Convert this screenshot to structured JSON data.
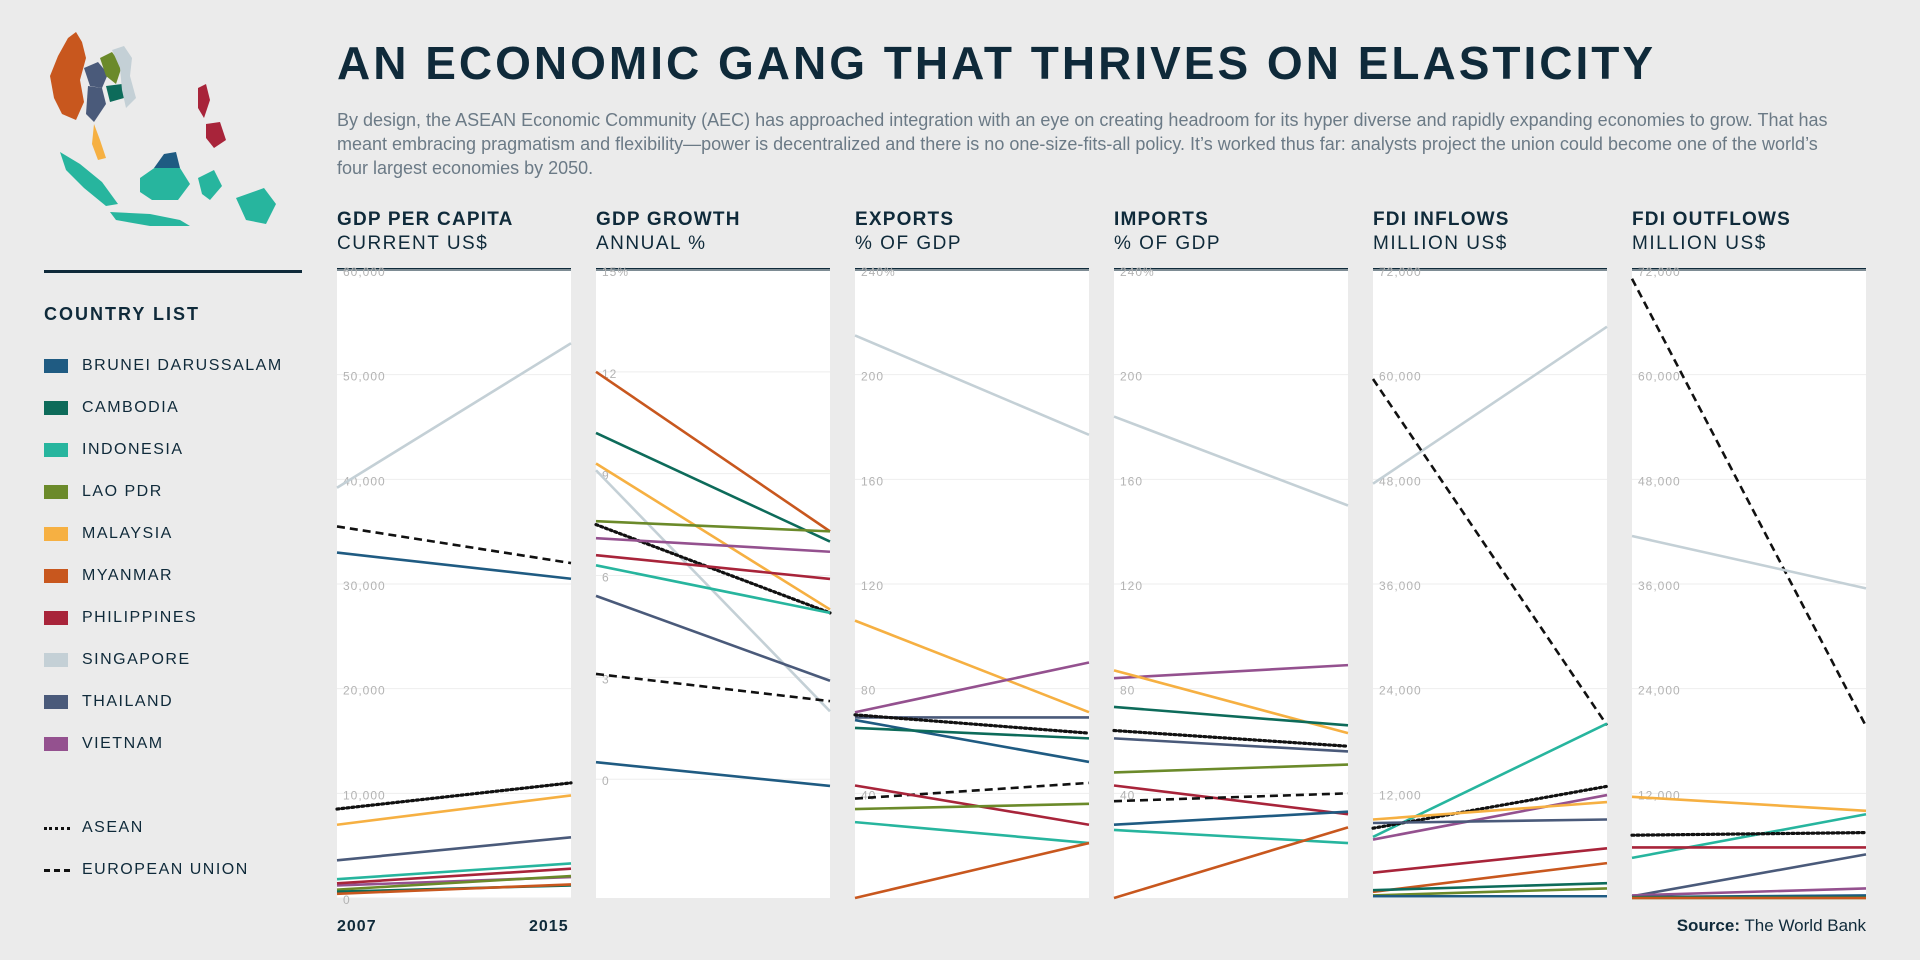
{
  "header": {
    "title": "AN ECONOMIC GANG THAT THRIVES ON ELASTICITY",
    "subtitle": "By design, the ASEAN Economic Community (AEC) has approached integration with an eye on creating headroom for its hyper diverse and rapidly expanding economies to grow. That has meant embracing pragmatism and flexibility—power is decentralized and there is no one-size-fits-all policy. It’s worked thus far: analysts project the union could become one of the world’s four largest economies by 2050."
  },
  "legend": {
    "title": "COUNTRY LIST",
    "countries": [
      {
        "name": "BRUNEI DARUSSALAM",
        "color": "#1f5b82"
      },
      {
        "name": "CAMBODIA",
        "color": "#0d6b5a"
      },
      {
        "name": "INDONESIA",
        "color": "#27b59e"
      },
      {
        "name": "LAO PDR",
        "color": "#6b8a2a"
      },
      {
        "name": "MALAYSIA",
        "color": "#f6b042"
      },
      {
        "name": "MYANMAR",
        "color": "#c8571e"
      },
      {
        "name": "PHILIPPINES",
        "color": "#a8243a"
      },
      {
        "name": "SINGAPORE",
        "color": "#c4d0d6"
      },
      {
        "name": "THAILAND",
        "color": "#4a5a7a"
      },
      {
        "name": "VIETNAM",
        "color": "#94518f"
      }
    ],
    "aggregates": [
      {
        "name": "ASEAN",
        "style": "dotted"
      },
      {
        "name": "EUROPEAN UNION",
        "style": "dashed"
      }
    ]
  },
  "years": {
    "start": "2007",
    "end": "2015"
  },
  "source": {
    "label": "Source:",
    "text": "The World Bank"
  },
  "chart_data": [
    {
      "type": "line",
      "title": "GDP PER CAPITA",
      "unit": "CURRENT US$",
      "x": [
        "2007",
        "2015"
      ],
      "ylim": [
        0,
        60000
      ],
      "yticks": [
        "60,000",
        "50,000",
        "40,000",
        "30,000",
        "20,000",
        "10,000",
        "0"
      ],
      "series": [
        {
          "name": "SINGAPORE",
          "values": [
            39200,
            53000
          ]
        },
        {
          "name": "EUROPEAN UNION",
          "values": [
            35500,
            32000
          ]
        },
        {
          "name": "BRUNEI DARUSSALAM",
          "values": [
            33000,
            30500
          ]
        },
        {
          "name": "ASEAN",
          "values": [
            8500,
            11000
          ]
        },
        {
          "name": "MALAYSIA",
          "values": [
            7000,
            9800
          ]
        },
        {
          "name": "THAILAND",
          "values": [
            3600,
            5800
          ]
        },
        {
          "name": "INDONESIA",
          "values": [
            1800,
            3300
          ]
        },
        {
          "name": "VIETNAM",
          "values": [
            1200,
            2000
          ]
        },
        {
          "name": "PHILIPPINES",
          "values": [
            1400,
            2800
          ]
        },
        {
          "name": "LAO PDR",
          "values": [
            800,
            2100
          ]
        },
        {
          "name": "CAMBODIA",
          "values": [
            600,
            1200
          ]
        },
        {
          "name": "MYANMAR",
          "values": [
            400,
            1300
          ]
        }
      ]
    },
    {
      "type": "line",
      "title": "GDP GROWTH",
      "unit": "ANNUAL %",
      "x": [
        "2007",
        "2015"
      ],
      "ylim": [
        -3.5,
        15
      ],
      "yticks": [
        "15%",
        "12",
        "9",
        "6",
        "3",
        "0"
      ],
      "series": [
        {
          "name": "MYANMAR",
          "values": [
            12,
            7.3
          ]
        },
        {
          "name": "CAMBODIA",
          "values": [
            10.2,
            7
          ]
        },
        {
          "name": "MALAYSIA",
          "values": [
            9.3,
            5
          ]
        },
        {
          "name": "SINGAPORE",
          "values": [
            9.1,
            2
          ]
        },
        {
          "name": "LAO PDR",
          "values": [
            7.6,
            7.3
          ]
        },
        {
          "name": "ASEAN",
          "values": [
            7.5,
            4.9
          ]
        },
        {
          "name": "VIETNAM",
          "values": [
            7.1,
            6.7
          ]
        },
        {
          "name": "PHILIPPINES",
          "values": [
            6.6,
            5.9
          ]
        },
        {
          "name": "INDONESIA",
          "values": [
            6.3,
            4.9
          ]
        },
        {
          "name": "THAILAND",
          "values": [
            5.4,
            2.9
          ]
        },
        {
          "name": "EUROPEAN UNION",
          "values": [
            3.1,
            2.3
          ]
        },
        {
          "name": "BRUNEI DARUSSALAM",
          "values": [
            0.5,
            -0.2
          ]
        }
      ]
    },
    {
      "type": "line",
      "title": "EXPORTS",
      "unit": "% OF GDP",
      "x": [
        "2007",
        "2015"
      ],
      "ylim": [
        0,
        240
      ],
      "yticks": [
        "240%",
        "200",
        "160",
        "120",
        "80",
        "40"
      ],
      "series": [
        {
          "name": "SINGAPORE",
          "values": [
            215,
            177
          ]
        },
        {
          "name": "MALAYSIA",
          "values": [
            106,
            71
          ]
        },
        {
          "name": "VIETNAM",
          "values": [
            71,
            90
          ]
        },
        {
          "name": "THAILAND",
          "values": [
            69,
            69
          ]
        },
        {
          "name": "ASEAN",
          "values": [
            70,
            63
          ]
        },
        {
          "name": "BRUNEI DARUSSALAM",
          "values": [
            68,
            52
          ]
        },
        {
          "name": "CAMBODIA",
          "values": [
            65,
            61
          ]
        },
        {
          "name": "EUROPEAN UNION",
          "values": [
            38,
            44
          ]
        },
        {
          "name": "PHILIPPINES",
          "values": [
            43,
            28
          ]
        },
        {
          "name": "LAO PDR",
          "values": [
            34,
            36
          ]
        },
        {
          "name": "INDONESIA",
          "values": [
            29,
            21
          ]
        },
        {
          "name": "MYANMAR",
          "values": [
            0,
            21
          ]
        }
      ]
    },
    {
      "type": "line",
      "title": "IMPORTS",
      "unit": "% OF GDP",
      "x": [
        "2007",
        "2015"
      ],
      "ylim": [
        0,
        240
      ],
      "yticks": [
        "240%",
        "200",
        "160",
        "120",
        "80",
        "40"
      ],
      "series": [
        {
          "name": "SINGAPORE",
          "values": [
            184,
            150
          ]
        },
        {
          "name": "VIETNAM",
          "values": [
            84,
            89
          ]
        },
        {
          "name": "MALAYSIA",
          "values": [
            87,
            63
          ]
        },
        {
          "name": "CAMBODIA",
          "values": [
            73,
            66
          ]
        },
        {
          "name": "ASEAN",
          "values": [
            64,
            58
          ]
        },
        {
          "name": "THAILAND",
          "values": [
            61,
            56
          ]
        },
        {
          "name": "LAO PDR",
          "values": [
            48,
            51
          ]
        },
        {
          "name": "PHILIPPINES",
          "values": [
            43,
            32
          ]
        },
        {
          "name": "EUROPEAN UNION",
          "values": [
            37,
            40
          ]
        },
        {
          "name": "BRUNEI DARUSSALAM",
          "values": [
            28,
            33
          ]
        },
        {
          "name": "INDONESIA",
          "values": [
            26,
            21
          ]
        },
        {
          "name": "MYANMAR",
          "values": [
            0,
            27
          ]
        }
      ]
    },
    {
      "type": "line",
      "title": "FDI INFLOWS",
      "unit": "MILLION US$",
      "x": [
        "2007",
        "2015"
      ],
      "ylim": [
        0,
        72000
      ],
      "yticks": [
        "72,000",
        "60,000",
        "48,000",
        "36,000",
        "24,000",
        "12,000"
      ],
      "series": [
        {
          "name": "SINGAPORE",
          "values": [
            47500,
            65500
          ]
        },
        {
          "name": "EUROPEAN UNION",
          "values": [
            59500,
            19800
          ]
        },
        {
          "name": "INDONESIA",
          "values": [
            7000,
            20000
          ]
        },
        {
          "name": "ASEAN",
          "values": [
            8000,
            12800
          ]
        },
        {
          "name": "VIETNAM",
          "values": [
            6700,
            11800
          ]
        },
        {
          "name": "MALAYSIA",
          "values": [
            9000,
            11000
          ]
        },
        {
          "name": "THAILAND",
          "values": [
            8600,
            9000
          ]
        },
        {
          "name": "PHILIPPINES",
          "values": [
            2900,
            5700
          ]
        },
        {
          "name": "MYANMAR",
          "values": [
            700,
            4000
          ]
        },
        {
          "name": "CAMBODIA",
          "values": [
            900,
            1700
          ]
        },
        {
          "name": "LAO PDR",
          "values": [
            300,
            1100
          ]
        },
        {
          "name": "BRUNEI DARUSSALAM",
          "values": [
            200,
            200
          ]
        }
      ]
    },
    {
      "type": "line",
      "title": "FDI OUTFLOWS",
      "unit": "MILLION US$",
      "x": [
        "2007",
        "2015"
      ],
      "ylim": [
        0,
        72000
      ],
      "yticks": [
        "72,000",
        "60,000",
        "48,000",
        "36,000",
        "24,000",
        "12,000"
      ],
      "series": [
        {
          "name": "EUROPEAN UNION",
          "values": [
            71000,
            19700
          ]
        },
        {
          "name": "SINGAPORE",
          "values": [
            41500,
            35500
          ]
        },
        {
          "name": "MALAYSIA",
          "values": [
            11600,
            10000
          ]
        },
        {
          "name": "INDONESIA",
          "values": [
            4600,
            9600
          ]
        },
        {
          "name": "ASEAN",
          "values": [
            7200,
            7500
          ]
        },
        {
          "name": "PHILIPPINES",
          "values": [
            5800,
            5800
          ]
        },
        {
          "name": "THAILAND",
          "values": [
            200,
            5000
          ]
        },
        {
          "name": "VIETNAM",
          "values": [
            300,
            1100
          ]
        },
        {
          "name": "BRUNEI DARUSSALAM",
          "values": [
            100,
            300
          ]
        },
        {
          "name": "CAMBODIA",
          "values": [
            100,
            100
          ]
        },
        {
          "name": "LAO PDR",
          "values": [
            0,
            0
          ]
        },
        {
          "name": "MYANMAR",
          "values": [
            0,
            0
          ]
        }
      ]
    }
  ]
}
